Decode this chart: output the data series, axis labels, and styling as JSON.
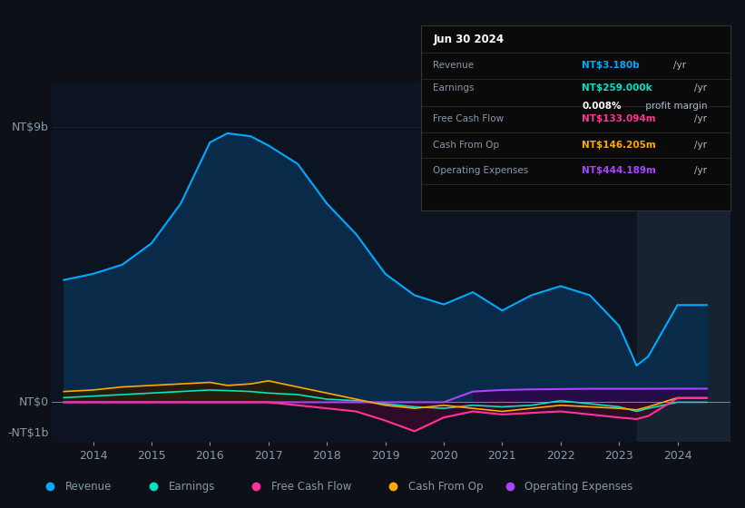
{
  "bg_color": "#0d1117",
  "plot_bg_color": "#0d1421",
  "ylabel_top": "NT$9b",
  "ylabel_mid": "NT$0",
  "ylabel_bot": "-NT$1b",
  "ylim": [
    -1300000000.0,
    10500000000.0
  ],
  "years": [
    2013.5,
    2014.0,
    2014.5,
    2015.0,
    2015.5,
    2016.0,
    2016.3,
    2016.7,
    2017.0,
    2017.5,
    2018.0,
    2018.5,
    2019.0,
    2019.5,
    2020.0,
    2020.5,
    2021.0,
    2021.5,
    2022.0,
    2022.5,
    2023.0,
    2023.3,
    2023.5,
    2024.0,
    2024.5
  ],
  "revenue": [
    4000000000.0,
    4200000000.0,
    4500000000.0,
    5200000000.0,
    6500000000.0,
    8500000000.0,
    8800000000.0,
    8700000000.0,
    8400000000.0,
    7800000000.0,
    6500000000.0,
    5500000000.0,
    4200000000.0,
    3500000000.0,
    3200000000.0,
    3600000000.0,
    3000000000.0,
    3500000000.0,
    3800000000.0,
    3500000000.0,
    2500000000.0,
    1200000000.0,
    1500000000.0,
    3180000000.0,
    3180000000.0
  ],
  "earnings": [
    150000000.0,
    200000000.0,
    250000000.0,
    300000000.0,
    350000000.0,
    400000000.0,
    380000000.0,
    350000000.0,
    300000000.0,
    250000000.0,
    100000000.0,
    50000000.0,
    -50000000.0,
    -150000000.0,
    -200000000.0,
    -100000000.0,
    -150000000.0,
    -100000000.0,
    50000000.0,
    -50000000.0,
    -150000000.0,
    -300000000.0,
    -200000000.0,
    259000.0,
    259000.0
  ],
  "free_cash_flow": [
    0.0,
    0.0,
    0.0,
    0.0,
    0.0,
    0.0,
    0.0,
    0.0,
    0.0,
    -100000000.0,
    -200000000.0,
    -300000000.0,
    -600000000.0,
    -950000000.0,
    -500000000.0,
    -300000000.0,
    -400000000.0,
    -350000000.0,
    -300000000.0,
    -400000000.0,
    -500000000.0,
    -550000000.0,
    -450000000.0,
    133000000.0,
    133000000.0
  ],
  "cash_from_op": [
    350000000.0,
    400000000.0,
    500000000.0,
    550000000.0,
    600000000.0,
    650000000.0,
    550000000.0,
    600000000.0,
    700000000.0,
    500000000.0,
    300000000.0,
    100000000.0,
    -100000000.0,
    -200000000.0,
    -100000000.0,
    -200000000.0,
    -300000000.0,
    -200000000.0,
    -100000000.0,
    -150000000.0,
    -200000000.0,
    -250000000.0,
    -150000000.0,
    146000000.0,
    146000000.0
  ],
  "op_expenses": [
    0.0,
    0.0,
    0.0,
    0.0,
    0.0,
    0.0,
    0.0,
    0.0,
    0.0,
    0.0,
    0.0,
    0.0,
    0.0,
    0.0,
    0.0,
    350000000.0,
    400000000.0,
    420000000.0,
    430000000.0,
    440000000.0,
    440000000.0,
    440000000.0,
    440000000.0,
    444000000.0,
    444000000.0
  ],
  "revenue_color": "#00aaff",
  "revenue_fill": "#0a2a4a",
  "earnings_color": "#00e5c8",
  "earnings_fill_pos": "#0a3535",
  "earnings_fill_neg": "#1a3535",
  "fcf_color": "#ff3399",
  "fcf_fill": "#3a0a2a",
  "cashop_color": "#ffaa00",
  "cashop_fill_pos": "#2a1a00",
  "cashop_fill_neg": "#1a0a00",
  "opex_color": "#aa44ff",
  "opex_fill": "#2a0a4a",
  "grid_color": "#1e2a3a",
  "text_color": "#8899aa",
  "info_bg": "#0a0a0a",
  "info_border": "#333333",
  "legend_items": [
    "Revenue",
    "Earnings",
    "Free Cash Flow",
    "Cash From Op",
    "Operating Expenses"
  ],
  "legend_colors": [
    "#00aaff",
    "#00e5c8",
    "#ff3399",
    "#ffaa00",
    "#aa44ff"
  ],
  "xtick_years": [
    2014,
    2015,
    2016,
    2017,
    2018,
    2019,
    2020,
    2021,
    2022,
    2023,
    2024
  ],
  "info_title": "Jun 30 2024",
  "shaded_region_start": 2023.3,
  "shaded_region_color": "#1a2535",
  "info_rows": [
    {
      "label": "Revenue",
      "value": "NT$3.180b",
      "unit": "/yr",
      "color": "#00aaff"
    },
    {
      "label": "Earnings",
      "value": "NT$259.000k",
      "unit": "/yr",
      "color": "#00e5c8"
    },
    {
      "label": "",
      "value": "0.008%",
      "unit": " profit margin",
      "color": "#ffffff"
    },
    {
      "label": "Free Cash Flow",
      "value": "NT$133.094m",
      "unit": "/yr",
      "color": "#ff3399"
    },
    {
      "label": "Cash From Op",
      "value": "NT$146.205m",
      "unit": "/yr",
      "color": "#ffaa00"
    },
    {
      "label": "Operating Expenses",
      "value": "NT$444.189m",
      "unit": "/yr",
      "color": "#aa44ff"
    }
  ]
}
